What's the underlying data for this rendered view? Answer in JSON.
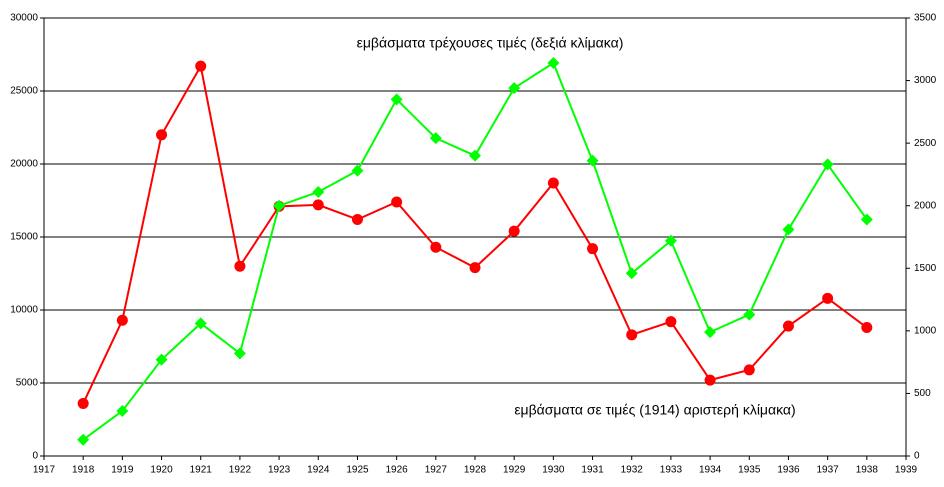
{
  "chart_data": {
    "type": "line",
    "x": [
      1918,
      1919,
      1920,
      1921,
      1922,
      1923,
      1924,
      1925,
      1926,
      1927,
      1928,
      1929,
      1930,
      1931,
      1932,
      1933,
      1934,
      1935,
      1936,
      1937,
      1938
    ],
    "series": [
      {
        "name": "εμβάσματα σε τιμές (1914) αριστερή κλίμακα)",
        "color": "#ff0000",
        "marker": "circle",
        "axis": "y",
        "values": [
          3600,
          9300,
          22000,
          26700,
          13000,
          17100,
          17200,
          16200,
          17400,
          14300,
          12900,
          15400,
          18700,
          14200,
          8300,
          9200,
          5200,
          5900,
          8900,
          10800,
          8800
        ]
      },
      {
        "name": "εμβάσματα τρέχουσες τιμές (δεξιά κλίμακα)",
        "color": "#00ff00",
        "marker": "diamond",
        "axis": "y2",
        "values": [
          130,
          360,
          770,
          1060,
          820,
          2000,
          2110,
          2280,
          2850,
          2540,
          2400,
          2940,
          3140,
          2360,
          1460,
          1720,
          990,
          1130,
          1810,
          2330,
          1890
        ]
      }
    ],
    "xlim": [
      1917,
      1939
    ],
    "xticks": [
      1917,
      1918,
      1919,
      1920,
      1921,
      1922,
      1923,
      1924,
      1925,
      1926,
      1927,
      1928,
      1929,
      1930,
      1931,
      1932,
      1933,
      1934,
      1935,
      1936,
      1937,
      1938,
      1939
    ],
    "ylim": [
      0,
      30000
    ],
    "yticks": [
      0,
      5000,
      10000,
      15000,
      20000,
      25000,
      30000
    ],
    "y2lim": [
      0,
      3500
    ],
    "y2ticks": [
      0,
      500,
      1000,
      1500,
      2000,
      2500,
      3000,
      3500
    ],
    "grid": true
  }
}
